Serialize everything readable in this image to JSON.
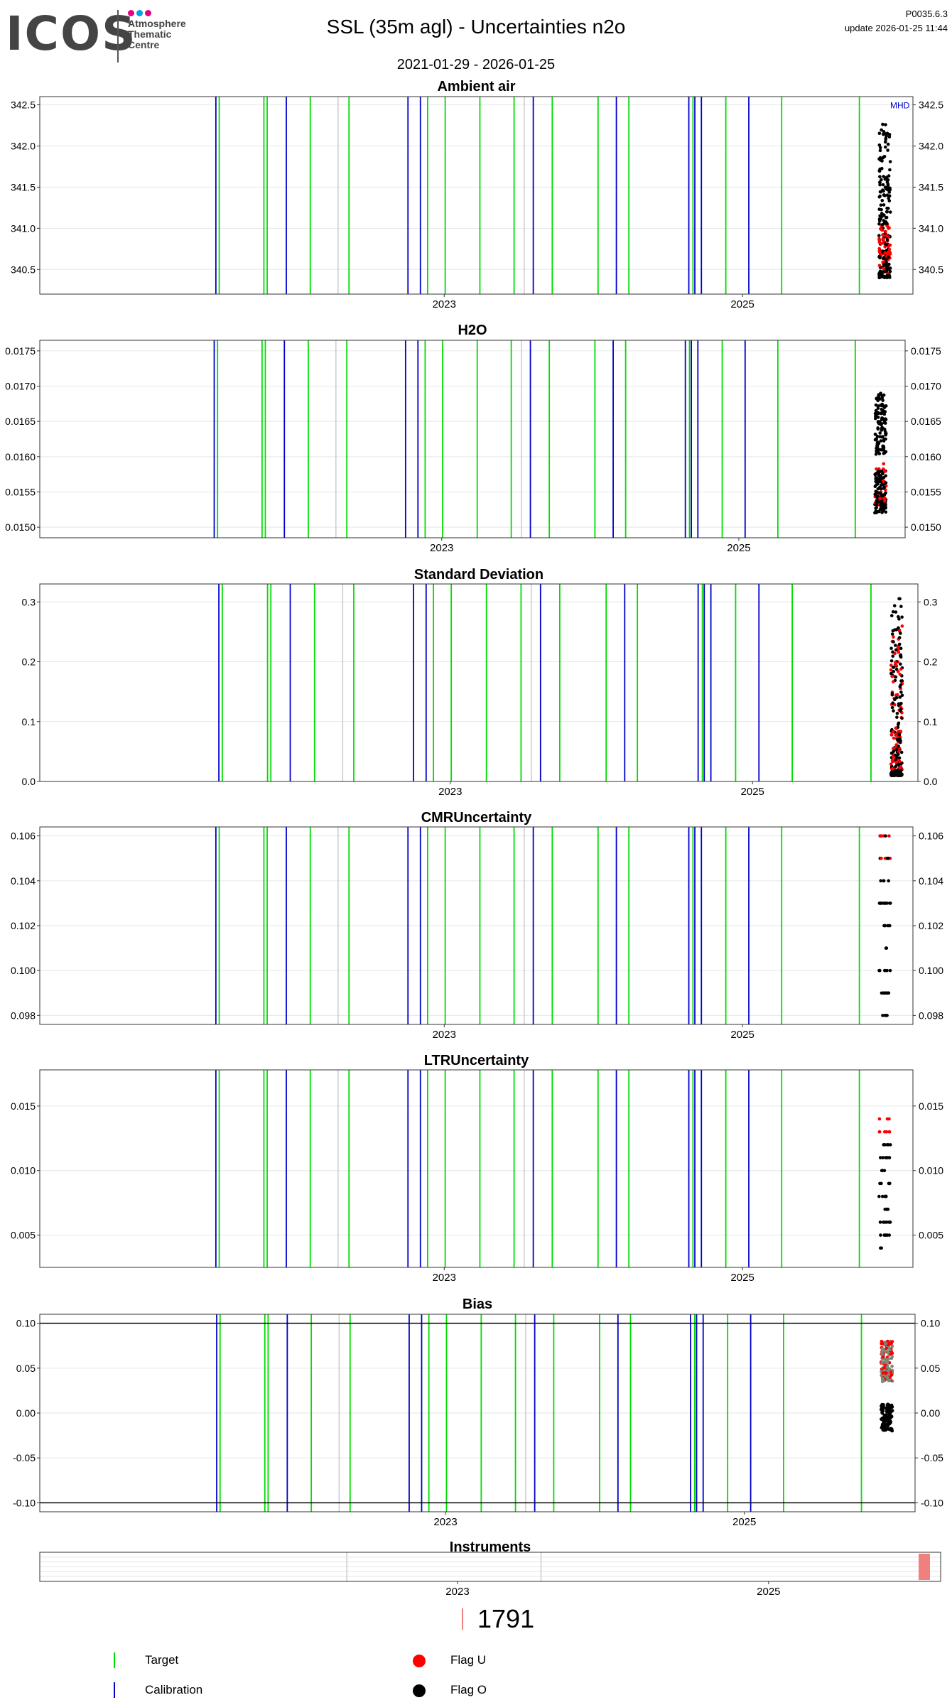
{
  "header": {
    "logo_text": "ICOS",
    "logo_sub": [
      "Atmosphere",
      "Thematic",
      "Centre"
    ],
    "logo_dot_colors": [
      "#e6007e",
      "#00a3e0",
      "#e6007e"
    ],
    "title": "SSL  (35m agl) - Uncertainties n2o",
    "date_range": "2021-01-29 - 2026-01-25",
    "version": "P0035.6.3",
    "update": "update  2026-01-25 11:44"
  },
  "colors": {
    "target": "#00dd00",
    "calibration": "#0000cc",
    "flag_u": "#ff0000",
    "flag_o": "#000000",
    "instrument": "#f08080",
    "gray_line": "#cccccc",
    "grid": "#e6e6e6"
  },
  "chart_data": [
    {
      "id": "ambient",
      "type": "scatter",
      "title": "Ambient air",
      "yticks": [
        "340.5",
        "341.0",
        "341.5",
        "342.0",
        "342.5"
      ],
      "yrange": [
        340.2,
        342.6
      ],
      "annotation": "MHD",
      "x_ticks": [
        "2023",
        "2025"
      ]
    },
    {
      "id": "h2o",
      "type": "scatter",
      "title": "H2O",
      "yticks": [
        "0.0150",
        "0.0155",
        "0.0160",
        "0.0165",
        "0.0170",
        "0.0175"
      ],
      "yrange": [
        0.01485,
        0.01765
      ],
      "x_ticks": [
        "2023",
        "2025"
      ]
    },
    {
      "id": "stddev",
      "type": "scatter",
      "title": "Standard Deviation",
      "yticks": [
        "0.0",
        "0.1",
        "0.2",
        "0.3"
      ],
      "yrange": [
        0.0,
        0.33
      ],
      "x_ticks": [
        "2023",
        "2025"
      ]
    },
    {
      "id": "cmr",
      "type": "scatter",
      "title": "CMRUncertainty",
      "yticks": [
        "0.098",
        "0.100",
        "0.102",
        "0.104",
        "0.106"
      ],
      "yrange": [
        0.0976,
        0.1064
      ],
      "x_ticks": [
        "2023",
        "2025"
      ]
    },
    {
      "id": "ltr",
      "type": "scatter",
      "title": "LTRUncertainty",
      "yticks": [
        "0.005",
        "0.010",
        "0.015"
      ],
      "yrange": [
        0.0025,
        0.0178
      ],
      "x_ticks": [
        "2023",
        "2025"
      ]
    },
    {
      "id": "bias",
      "type": "scatter",
      "title": "Bias",
      "yticks": [
        "-0.10",
        "-0.05",
        "0.00",
        "0.05",
        "0.10"
      ],
      "yrange": [
        -0.11,
        0.11
      ],
      "hlines": [
        -0.1,
        0.1
      ],
      "x_ticks": [
        "2023",
        "2025"
      ]
    },
    {
      "id": "instruments",
      "type": "bar",
      "title": "Instruments",
      "instrument": "1791",
      "x_ticks": [
        "2023",
        "2025"
      ]
    }
  ],
  "legend": {
    "count_label": "1791",
    "target": "Target",
    "calibration": "Calibration",
    "flag_u": "Flag U",
    "flag_o": "Flag O"
  }
}
